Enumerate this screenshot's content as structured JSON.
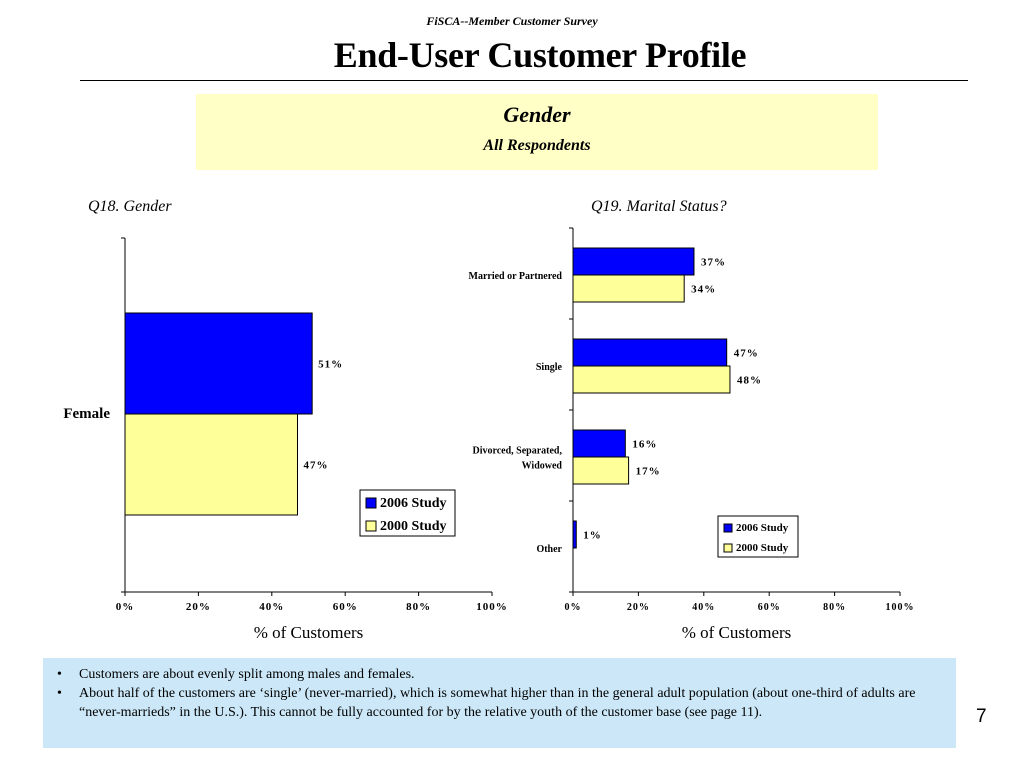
{
  "header": {
    "subtitle": "FiSCA--Member Customer Survey",
    "title": "End-User Customer Profile"
  },
  "banner": {
    "title": "Gender",
    "subtitle": "All Respondents"
  },
  "colors": {
    "series_2006": "#0000ff",
    "series_2000": "#ffff99",
    "banner_bg": "#ffffc6",
    "notes_bg": "#cce8f8"
  },
  "chart_data": [
    {
      "type": "bar",
      "orientation": "horizontal",
      "title": "Q18. Gender",
      "categories": [
        "Female"
      ],
      "series": [
        {
          "name": "2006 Study",
          "values": [
            51
          ],
          "labels": [
            "51%"
          ]
        },
        {
          "name": "2000 Study",
          "values": [
            47
          ],
          "labels": [
            "47%"
          ]
        }
      ],
      "xlabel": "% of Customers",
      "xlim": [
        0,
        100
      ],
      "xticks": [
        "0%",
        "20%",
        "40%",
        "60%",
        "80%",
        "100%"
      ],
      "legend_position": "bottom-right"
    },
    {
      "type": "bar",
      "orientation": "horizontal",
      "title": "Q19. Marital Status?",
      "categories": [
        "Married or Partnered",
        "Single",
        "Divorced, Separated, Widowed",
        "Other"
      ],
      "series": [
        {
          "name": "2006 Study",
          "values": [
            37,
            47,
            16,
            1
          ],
          "labels": [
            "37%",
            "47%",
            "16%",
            "1%"
          ]
        },
        {
          "name": "2000 Study",
          "values": [
            34,
            48,
            17,
            null
          ],
          "labels": [
            "34%",
            "48%",
            "17%",
            ""
          ]
        }
      ],
      "xlabel": "% of Customers",
      "xlim": [
        0,
        100
      ],
      "xticks": [
        "0%",
        "20%",
        "40%",
        "60%",
        "80%",
        "100%"
      ],
      "legend_position": "bottom-right"
    }
  ],
  "notes": [
    "Customers are about evenly split among males and females.",
    "About half of the customers are ‘single’ (never-married), which is somewhat higher than in the general adult population (about one-third of adults are “never-marrieds” in the U.S.).  This cannot be fully accounted for by the relative youth of the customer base (see page 11)."
  ],
  "page_number": "7"
}
